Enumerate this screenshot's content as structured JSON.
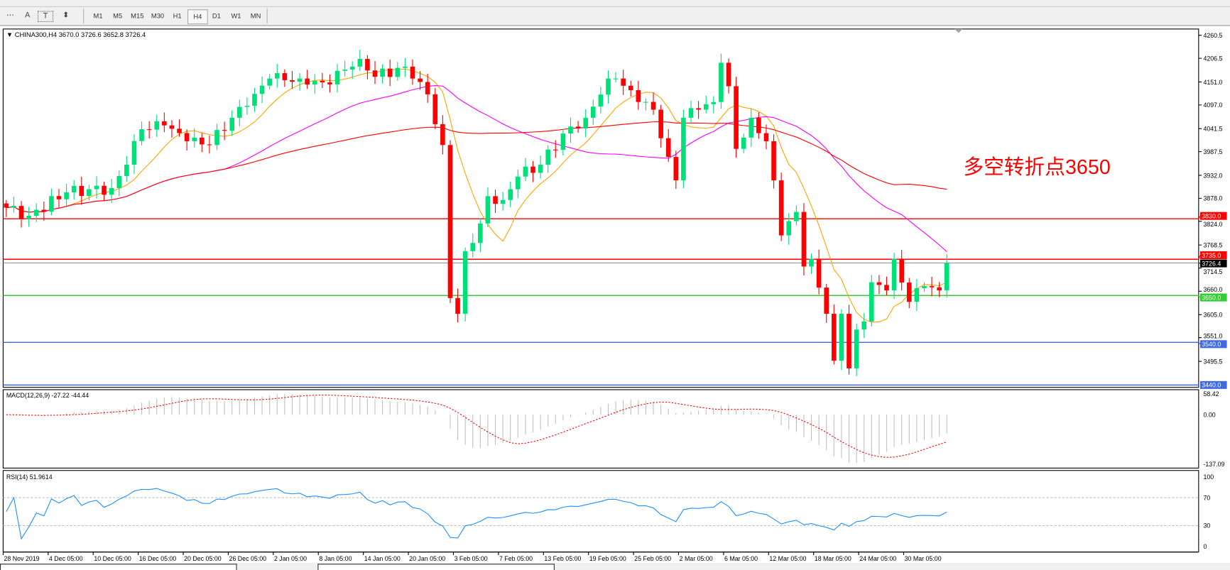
{
  "toolbar": {
    "tools": [
      {
        "name": "crosshair-lines-icon",
        "glyph": "⋯"
      },
      {
        "name": "text-icon",
        "glyph": "A"
      },
      {
        "name": "text-label-icon",
        "glyph": "T"
      },
      {
        "name": "arrows-icon",
        "glyph": "⬍"
      }
    ],
    "timeframes": [
      "M1",
      "M5",
      "M15",
      "M30",
      "H1",
      "H4",
      "D1",
      "W1",
      "MN"
    ],
    "selected_timeframe": "H4"
  },
  "chart": {
    "header": "▼ CHINA300,H4  3670.0 3726.6 3652.8 3726.4",
    "annotation": "多空转折点3650",
    "annotation_color": "#ff0000",
    "price_ticks": [
      "4260.5",
      "4206.5",
      "4151.0",
      "4097.0",
      "4041.5",
      "3987.5",
      "3932.0",
      "3878.0",
      "3824.0",
      "3768.5",
      "3714.5",
      "3660.0",
      "3605.0",
      "3551.0",
      "3495.5"
    ],
    "levels": [
      {
        "label": "3830.0",
        "value": 3830,
        "color": "#ff0000"
      },
      {
        "label": "3735.0",
        "value": 3735,
        "color": "#ff0000"
      },
      {
        "label": "3726.4",
        "value": 3726.4,
        "color": "#000000",
        "line": "#8a96a0"
      },
      {
        "label": "3650.0",
        "value": 3650,
        "color": "#32cd32"
      },
      {
        "label": "3540.0",
        "value": 3540,
        "color": "#4169e1"
      },
      {
        "label": "3440.0",
        "value": 3440,
        "color": "#4169e1"
      }
    ],
    "time_labels": [
      "28 Nov 2019",
      "4 Dec 05:00",
      "10 Dec 05:00",
      "16 Dec 05:00",
      "20 Dec 05:00",
      "26 Dec 05:00",
      "2 Jan 05:00",
      "8 Jan 05:00",
      "14 Jan 05:00",
      "20 Jan 05:00",
      "3 Feb 05:00",
      "7 Feb 05:00",
      "13 Feb 05:00",
      "19 Feb 05:00",
      "25 Feb 05:00",
      "2 Mar 05:00",
      "6 Mar 05:00",
      "12 Mar 05:00",
      "18 Mar 05:00",
      "24 Mar 05:00",
      "30 Mar 05:00"
    ],
    "colors": {
      "up": "#00e07a",
      "down": "#ff0000",
      "ma_fast": "#ffa500",
      "ma_mid": "#ff00ff",
      "ma_slow": "#ff0000"
    }
  },
  "macd": {
    "label": "MACD(12,26,9) -27.22 -44.44",
    "ticks": [
      "58.42",
      "0.00",
      "-137.09"
    ]
  },
  "rsi": {
    "label": "RSI(14) 51.9614",
    "ticks": [
      "100",
      "70",
      "30",
      "0"
    ],
    "color": "#1e90ff"
  },
  "chart_data": {
    "type": "candlestick",
    "symbol": "CHINA300",
    "timeframe": "H4",
    "ylim": [
      3440,
      4260.5
    ],
    "close_keypoints": [
      [
        0,
        3856
      ],
      [
        3,
        3837
      ],
      [
        8,
        3892
      ],
      [
        14,
        3902
      ],
      [
        16,
        3957
      ],
      [
        18,
        4040
      ],
      [
        21,
        4049
      ],
      [
        24,
        4012
      ],
      [
        27,
        4003
      ],
      [
        30,
        4067
      ],
      [
        32,
        4095
      ],
      [
        35,
        4159
      ],
      [
        39,
        4159
      ],
      [
        42,
        4150
      ],
      [
        46,
        4187
      ],
      [
        47,
        4205
      ],
      [
        49,
        4163
      ],
      [
        53,
        4187
      ],
      [
        54,
        4159
      ],
      [
        56,
        4122
      ],
      [
        58,
        4003
      ],
      [
        59,
        3644
      ],
      [
        60,
        3607
      ],
      [
        61,
        3754
      ],
      [
        63,
        3819
      ],
      [
        64,
        3883
      ],
      [
        66,
        3874
      ],
      [
        68,
        3929
      ],
      [
        71,
        3957
      ],
      [
        74,
        4030
      ],
      [
        77,
        4067
      ],
      [
        80,
        4159
      ],
      [
        81,
        4159
      ],
      [
        84,
        4104
      ],
      [
        86,
        4086
      ],
      [
        88,
        3975
      ],
      [
        89,
        3920
      ],
      [
        90,
        4067
      ],
      [
        92,
        4086
      ],
      [
        94,
        4104
      ],
      [
        95,
        4196
      ],
      [
        96,
        4141
      ],
      [
        97,
        3994
      ],
      [
        99,
        4067
      ],
      [
        101,
        4012
      ],
      [
        102,
        3920
      ],
      [
        103,
        3791
      ],
      [
        105,
        3846
      ],
      [
        106,
        3718
      ],
      [
        107,
        3736
      ],
      [
        109,
        3607
      ],
      [
        110,
        3497
      ],
      [
        111,
        3607
      ],
      [
        112,
        3479
      ],
      [
        113,
        3570
      ],
      [
        114,
        3589
      ],
      [
        115,
        3681
      ],
      [
        117,
        3662
      ],
      [
        118,
        3736
      ],
      [
        120,
        3635
      ],
      [
        122,
        3672
      ],
      [
        124,
        3662
      ],
      [
        125,
        3726.4
      ]
    ]
  }
}
